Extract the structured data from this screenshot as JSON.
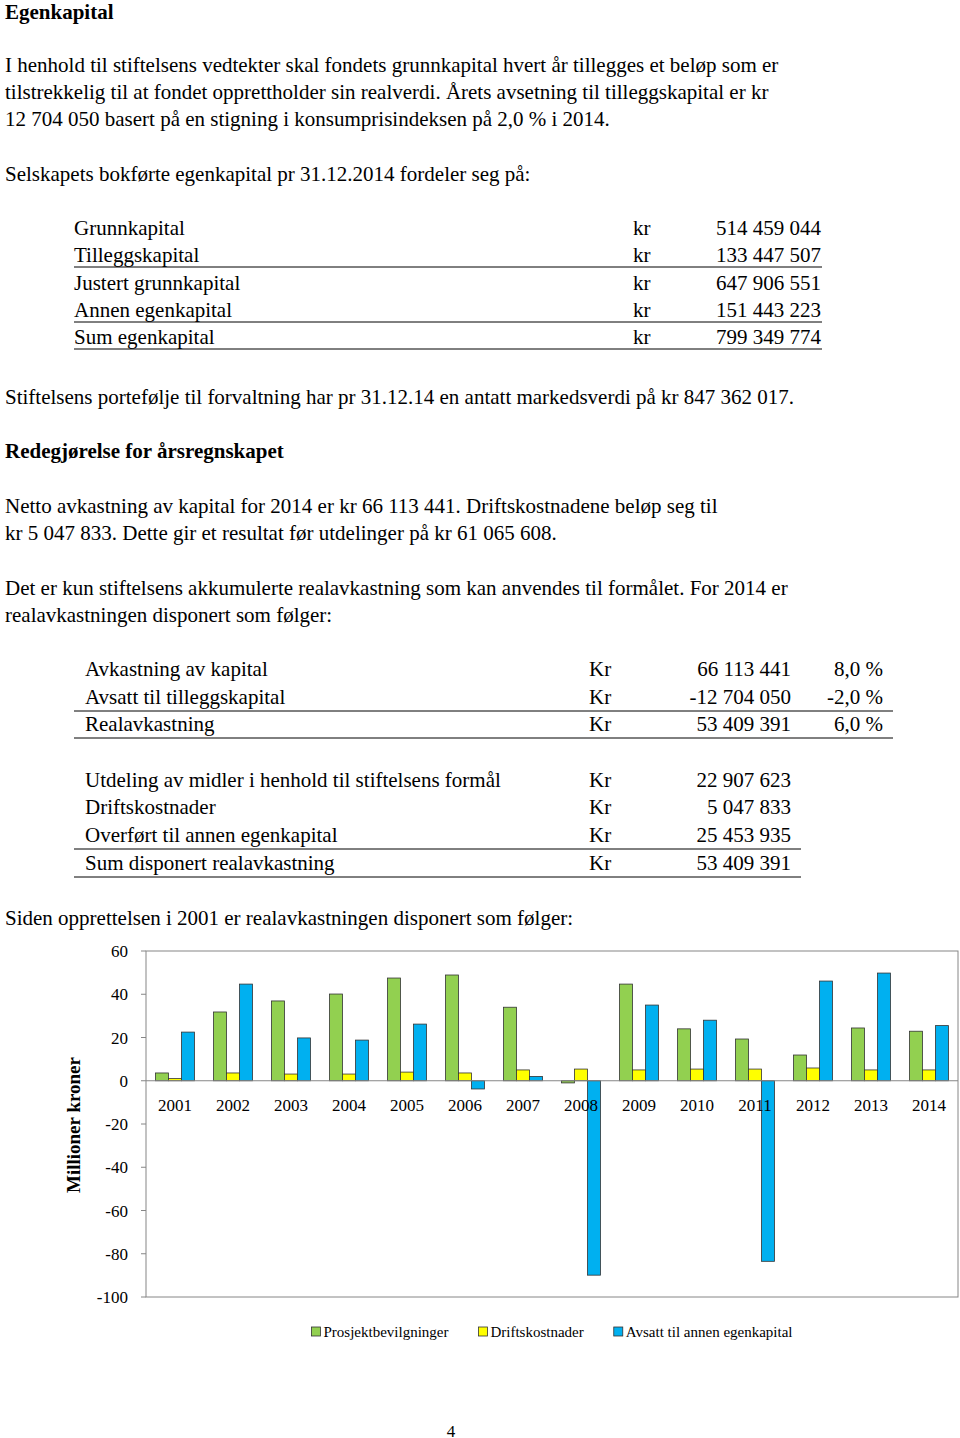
{
  "heading": "Egenkapital",
  "paragraph_1": [
    "I henhold til stiftelsens vedtekter skal fondets grunnkapital hvert år tillegges et beløp som er",
    "tilstrekkelig til at fondet opprettholder sin realverdi. Årets avsetning til tilleggskapital er kr",
    "12 704 050 basert på en stigning i konsumprisindeksen på 2,0 % i 2014."
  ],
  "paragraph_2": [
    "Selskapets bokførte egenkapital pr 31.12.2014 fordeler seg på:"
  ],
  "equity_table": {
    "rows": [
      [
        "Grunnkapital",
        "kr",
        "514 459 044"
      ],
      [
        "Tilleggskapital",
        "kr",
        "133 447 507"
      ],
      [
        "Justert grunnkapital",
        "kr",
        "647 906 551"
      ],
      [
        "Annen egenkapital",
        "kr",
        "151 443 223"
      ],
      [
        "Sum egenkapital",
        "kr",
        "799 349 774"
      ]
    ]
  },
  "paragraph_3": [
    "Stiftelsens portefølje til forvaltning har pr 31.12.14 en antatt markedsverdi på kr 847 362 017."
  ],
  "subheading": "Redegjørelse for årsregnskapet",
  "paragraph_4": [
    "Netto avkastning av kapital for 2014 er kr 66 113 441. Driftskostnadene beløp seg til",
    "kr 5 047 833. Dette gir et resultat før utdelinger på kr 61 065 608."
  ],
  "paragraph_5": [
    "Det er kun stiftelsens akkumulerte realavkastning som kan anvendes til formålet. For 2014 er",
    "realavkastningen disponert som følger:"
  ],
  "return_table": {
    "rows": [
      [
        "Avkastning av kapital",
        "Kr",
        "66 113 441",
        "8,0 %"
      ],
      [
        "Avsatt til tilleggskapital",
        "Kr",
        "-12 704 050",
        "-2,0 %"
      ],
      [
        "Realavkastning",
        "Kr",
        "53 409 391",
        "6,0 %"
      ]
    ]
  },
  "disposition_table": {
    "rows": [
      [
        "Utdeling av midler i henhold til stiftelsens formål",
        "Kr",
        "22 907 623"
      ],
      [
        "Driftskostnader",
        "Kr",
        "5 047 833"
      ],
      [
        "Overført til annen egenkapital",
        "Kr",
        "25 453 935"
      ],
      [
        "Sum disponert realavkastning",
        "Kr",
        "53 409 391"
      ]
    ]
  },
  "paragraph_6": [
    "Siden opprettelsen i 2001 er realavkastningen disponert som følger:"
  ],
  "chart_data": {
    "type": "bar",
    "y_label": "Millioner kroner",
    "categories": [
      "2001",
      "2002",
      "2003",
      "2004",
      "2005",
      "2006",
      "2007",
      "2008",
      "2009",
      "2010",
      "2011",
      "2012",
      "2013",
      "2014"
    ],
    "series": [
      {
        "name": "Prosjektbevilgninger",
        "color": "#92d050",
        "values": [
          3.6,
          31.8,
          36.9,
          40.1,
          47.5,
          48.9,
          34.0,
          -1.0,
          44.7,
          24.0,
          19.3,
          11.9,
          24.4,
          22.9
        ]
      },
      {
        "name": "Driftskostnader",
        "color": "#ffff00",
        "values": [
          1.0,
          3.6,
          3.1,
          3.1,
          4.0,
          3.6,
          5.0,
          5.4,
          5.0,
          5.4,
          5.4,
          5.9,
          5.0,
          5.0
        ]
      },
      {
        "name": "Avsatt til annen egenkapital",
        "color": "#00b0f0",
        "values": [
          22.5,
          44.7,
          19.8,
          18.8,
          26.2,
          -3.8,
          2.0,
          -89.9,
          35.0,
          28.0,
          -83.5,
          46.1,
          49.8,
          25.5
        ]
      }
    ],
    "ylim": [
      -100,
      60
    ],
    "yticks": [
      -100,
      -80,
      -60,
      -40,
      -20,
      0,
      20,
      40,
      60
    ],
    "grid": false,
    "legend": "bottom"
  },
  "page_number": "4"
}
